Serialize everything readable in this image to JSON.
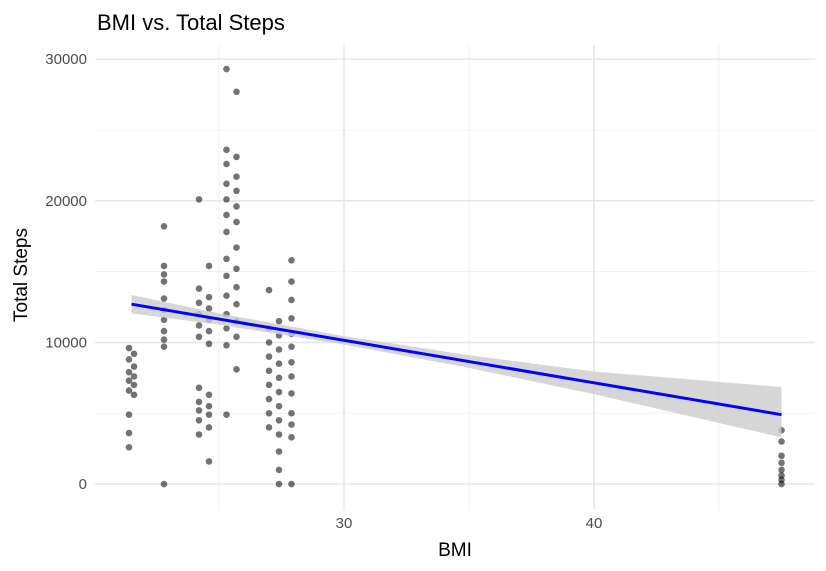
{
  "chart_data": {
    "type": "scatter",
    "title": "BMI vs. Total Steps",
    "x_label": "BMI",
    "y_label": "Total Steps",
    "x": [
      21.4,
      21.6,
      21.4,
      21.6,
      21.4,
      21.6,
      21.4,
      21.6,
      21.4,
      21.6,
      21.4,
      21.4,
      21.4,
      22.8,
      22.8,
      22.8,
      22.8,
      22.8,
      22.8,
      22.8,
      22.8,
      22.8,
      22.8,
      22.8,
      24.2,
      24.6,
      24.2,
      24.6,
      24.2,
      24.6,
      24.2,
      24.6,
      24.2,
      24.6,
      24.2,
      24.6,
      24.2,
      24.6,
      24.2,
      24.6,
      24.2,
      24.6,
      24.2,
      24.6,
      24.2,
      24.6,
      25.3,
      25.7,
      25.3,
      25.7,
      25.3,
      25.7,
      25.3,
      25.7,
      25.3,
      25.7,
      25.3,
      25.7,
      25.3,
      25.7,
      25.3,
      25.7,
      25.3,
      25.7,
      25.3,
      25.7,
      25.3,
      25.7,
      25.3,
      25.7,
      25.3,
      25.7,
      25.3,
      27.0,
      27.4,
      27.0,
      27.4,
      27.0,
      27.4,
      27.0,
      27.4,
      27.0,
      27.4,
      27.0,
      27.4,
      27.0,
      27.4,
      27.0,
      27.4,
      27.0,
      27.4,
      27.4,
      27.4,
      27.4,
      27.9,
      27.9,
      27.9,
      27.9,
      27.9,
      27.9,
      27.9,
      27.9,
      27.9,
      27.9,
      27.9,
      27.9,
      27.9,
      47.5,
      47.5,
      47.5,
      47.5,
      47.5,
      47.5,
      47.5,
      47.5
    ],
    "y": [
      9600,
      9200,
      8800,
      8300,
      7900,
      7600,
      7300,
      7000,
      6600,
      6300,
      4900,
      3600,
      2600,
      18200,
      15400,
      14800,
      14300,
      13100,
      12300,
      11600,
      10800,
      10200,
      9700,
      0,
      20100,
      15400,
      13800,
      13200,
      12800,
      12400,
      12000,
      11600,
      11200,
      10800,
      10400,
      9900,
      6800,
      6300,
      5800,
      5500,
      5200,
      4900,
      4500,
      4000,
      3500,
      1600,
      29300,
      27700,
      23600,
      23100,
      22600,
      21700,
      21200,
      20700,
      20100,
      19600,
      19000,
      18500,
      17800,
      16700,
      15900,
      15200,
      14700,
      13900,
      13300,
      12700,
      12000,
      11500,
      11000,
      10400,
      9800,
      8100,
      4900,
      13700,
      11500,
      11000,
      10500,
      10000,
      9500,
      9000,
      8500,
      8000,
      7500,
      7000,
      6500,
      6000,
      5500,
      5000,
      4500,
      4000,
      3500,
      2300,
      1000,
      0,
      15800,
      14300,
      13000,
      11700,
      10600,
      9700,
      8600,
      7600,
      6400,
      5000,
      4200,
      3300,
      0,
      3800,
      3000,
      2000,
      1500,
      1000,
      600,
      300,
      0
    ],
    "color": "#000000",
    "opacity": 0.55,
    "trend": {
      "x": [
        21.5,
        25,
        30,
        35,
        40,
        47.5
      ],
      "y": [
        12700,
        11650,
        10150,
        8650,
        7150,
        4900
      ],
      "band_lower": [
        12050,
        11250,
        9850,
        8200,
        6350,
        3300
      ],
      "band_upper": [
        13350,
        12050,
        10450,
        9100,
        7950,
        6850
      ],
      "color": "#0000ff",
      "band_color": "#cccccc"
    },
    "xlim": [
      20.04,
      48.84
    ],
    "ylim": [
      -1830,
      31000
    ],
    "xticks": [
      30,
      40
    ],
    "yticks": [
      0,
      10000,
      20000,
      30000
    ],
    "x_minor_grid": [
      25,
      35,
      45
    ],
    "y_minor_grid": [
      5000,
      15000,
      25000
    ],
    "grid": true
  }
}
